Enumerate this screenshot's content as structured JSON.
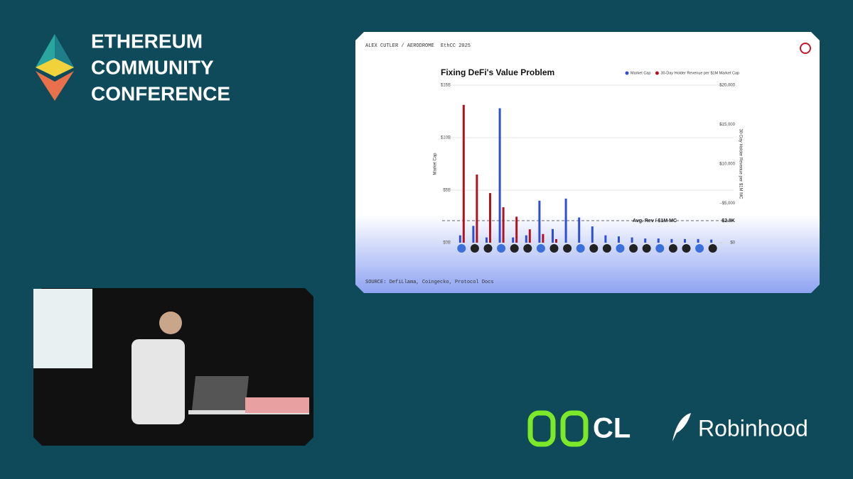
{
  "branding": {
    "conference_lines": [
      "ETHEREUM",
      "COMMUNITY",
      "CONFERENCE"
    ],
    "sponsors": [
      "CL",
      "Robinhood"
    ]
  },
  "slide": {
    "speaker": "ALEX CUTLER / AERODROME",
    "event": "EthCC 2025",
    "source": "SOURCE: DefiLlama, Coingecko, Protocol Docs"
  },
  "chart_data": {
    "type": "bar",
    "title": "Fixing DeFi's Value Problem",
    "y_label": "Market Cap",
    "y2_label": "30-Day Holder Revenue per $1M MC",
    "categories": [
      null,
      null,
      null,
      null,
      null,
      null,
      null,
      null,
      null,
      null,
      null,
      null,
      null,
      null,
      null,
      null,
      null,
      null,
      null,
      null
    ],
    "series": [
      {
        "name": "Market Cap",
        "color": "#2d4fd8",
        "values": [
          0.7,
          1.6,
          0.5,
          12.8,
          0.5,
          0.7,
          4.0,
          1.3,
          4.2,
          2.4,
          1.55,
          0.7,
          0.6,
          0.5,
          0.4,
          0.4,
          0.35,
          0.35,
          0.35,
          0.3
        ]
      },
      {
        "name": "30-Day Holder Revenue per $1M Market Cap",
        "color": "#b3121c",
        "axis": "y2",
        "values": [
          17500,
          8650,
          6300,
          4500,
          3300,
          1700,
          1100,
          450,
          null,
          null,
          null,
          null,
          null,
          null,
          null,
          null,
          null,
          null,
          null,
          null
        ]
      }
    ],
    "ylim": [
      0,
      15
    ],
    "yticks": [
      {
        "value": 0,
        "label": "$0B"
      },
      {
        "value": 5,
        "label": "$5B"
      },
      {
        "value": 10,
        "label": "$10B"
      },
      {
        "value": 15,
        "label": "$15B"
      }
    ],
    "y2lim": [
      0,
      20000
    ],
    "y2ticks": [
      {
        "value": 0,
        "label": "$0"
      },
      {
        "value": 5000,
        "label": "$5,000"
      },
      {
        "value": 10000,
        "label": "$10,000"
      },
      {
        "value": 15000,
        "label": "$15,000"
      },
      {
        "value": 20000,
        "label": "$20,000"
      }
    ],
    "reference_line": {
      "name": "Avg. Rev / $1M MC",
      "value": 2800,
      "label": "$2.8K",
      "axis": "y2"
    },
    "grid": true,
    "legend": "top-right"
  }
}
